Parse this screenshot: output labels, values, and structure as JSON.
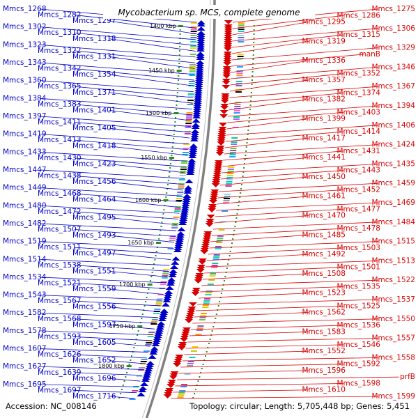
{
  "title": "Mycobacterium sp. MCS, complete genome",
  "footer": {
    "accession": "Accession: NC_008146",
    "stats": "Topology: circular; Length: 5,705,448 bp; Genes: 5,451"
  },
  "ticks": [
    "1400 kbp",
    "1450 kbp",
    "1500 kbp",
    "1550 kbp",
    "1600 kbp",
    "1650 kbp",
    "1700 kbp",
    "1750 kbp",
    "1800 kbp"
  ],
  "left_genes": [
    "Mmcs_1268",
    "Mmcs_1282",
    "Mmcs_1297",
    "Mmcs_1302",
    "Mmcs_1310",
    "Mmcs_1318",
    "Mmcs_1323",
    "Mmcs_1322",
    "Mmcs_1331",
    "Mmcs_1343",
    "Mmcs_1342",
    "Mmcs_1354",
    "Mmcs_1360",
    "Mmcs_1365",
    "Mmcs_1371",
    "Mmcs_1384",
    "Mmcs_1383",
    "Mmcs_1401",
    "Mmcs_1397",
    "Mmcs_1411",
    "Mmcs_1405",
    "Mmcs_1419",
    "Mmcs_1413",
    "Mmcs_1418",
    "Mmcs_1433",
    "Mmcs_1430",
    "Mmcs_1423",
    "Mmcs_1447",
    "Mmcs_1438",
    "Mmcs_1456",
    "Mmcs_1449",
    "Mmcs_1468",
    "Mmcs_1464",
    "Mmcs_1480",
    "Mmcs_1472",
    "Mmcs_1495",
    "Mmcs_1482",
    "Mmcs_1507",
    "Mmcs_1493",
    "Mmcs_1519",
    "Mmcs_1511",
    "Mmcs_1497",
    "Mmcs_1514",
    "Mmcs_1538",
    "Mmcs_1551",
    "Mmcs_1534",
    "Mmcs_1521",
    "Mmcs_1559",
    "Mmcs_1543",
    "Mmcs_1567",
    "Mmcs_1556",
    "Mmcs_1582",
    "Mmcs_1568",
    "Mmcs_1597",
    "Mmcs_1578",
    "Mmcs_1593",
    "Mmcs_1605",
    "Mmcs_1607",
    "Mmcs_1626",
    "Mmcs_1652",
    "Mmcs_1627",
    "Mmcs_1639",
    "Mmcs_1696",
    "Mmcs_1695",
    "Mmcs_1697",
    "Mmcs_1716"
  ],
  "right_genes": [
    "Mmcs_1275",
    "Mmcs_1286",
    "Mmcs_1295",
    "Mmcs_1306",
    "Mmcs_1315",
    "Mmcs_1319",
    "Mmcs_1329",
    "manB",
    "Mmcs_1336",
    "Mmcs_1346",
    "Mmcs_1352",
    "Mmcs_1357",
    "Mmcs_1367",
    "Mmcs_1374",
    "Mmcs_1382",
    "Mmcs_1394",
    "Mmcs_1403",
    "Mmcs_1399",
    "Mmcs_1406",
    "Mmcs_1414",
    "Mmcs_1417",
    "Mmcs_1424",
    "Mmcs_1431",
    "Mmcs_1441",
    "Mmcs_1435",
    "Mmcs_1443",
    "Mmcs_1450",
    "Mmcs_1459",
    "Mmcs_1452",
    "Mmcs_1461",
    "Mmcs_1469",
    "Mmcs_1477",
    "Mmcs_1470",
    "Mmcs_1484",
    "Mmcs_1478",
    "Mmcs_1485",
    "Mmcs_1515",
    "Mmcs_1503",
    "Mmcs_1492",
    "Mmcs_1513",
    "Mmcs_1501",
    "Mmcs_1508",
    "Mmcs_1522",
    "Mmcs_1535",
    "Mmcs_1523",
    "Mmcs_1537",
    "Mmcs_1525",
    "Mmcs_1562",
    "Mmcs_1550",
    "Mmcs_1536",
    "Mmcs_1583",
    "Mmcs_1557",
    "Mmcs_1546",
    "Mmcs_1552",
    "Mmcs_1558",
    "Mmcs_1592",
    "Mmcs_1596",
    "prfB",
    "Mmcs_1598",
    "Mmcs_1610",
    "Mmcs_1599"
  ],
  "colors": {
    "forward": "#d80000",
    "reverse": "#0000c8",
    "backbone": "#808080",
    "tick": "#2e8b22",
    "feature_palette": [
      "#3399ff",
      "#00cc99",
      "#ff66cc",
      "#ffcc00",
      "#66cc33",
      "#9966ff",
      "#00cccc",
      "#ff9900",
      "#cc3399",
      "#33cccc",
      "#999999",
      "#99ccff",
      "#cccc00",
      "#6666cc",
      "#000000"
    ]
  }
}
